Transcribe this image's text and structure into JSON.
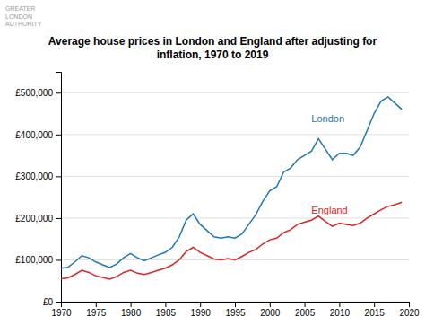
{
  "chart_data": {
    "type": "line",
    "title": "Average house prices in London and England after adjusting for\ninflation, 1970 to 2019",
    "x": [
      1970,
      1971,
      1972,
      1973,
      1974,
      1975,
      1976,
      1977,
      1978,
      1979,
      1980,
      1981,
      1982,
      1983,
      1984,
      1985,
      1986,
      1987,
      1988,
      1989,
      1990,
      1991,
      1992,
      1993,
      1994,
      1995,
      1996,
      1997,
      1998,
      1999,
      2000,
      2001,
      2002,
      2003,
      2004,
      2005,
      2006,
      2007,
      2008,
      2009,
      2010,
      2011,
      2012,
      2013,
      2014,
      2015,
      2016,
      2017,
      2018,
      2019
    ],
    "series": [
      {
        "color": "#1f77b4",
        "values": [
          80000,
          82000,
          95000,
          110000,
          105000,
          95000,
          88000,
          82000,
          90000,
          105000,
          115000,
          105000,
          98000,
          105000,
          112000,
          118000,
          130000,
          155000,
          195000,
          210000,
          185000,
          170000,
          155000,
          152000,
          155000,
          152000,
          162000,
          185000,
          208000,
          240000,
          265000,
          275000,
          310000,
          320000,
          340000,
          350000,
          360000,
          390000,
          365000,
          340000,
          355000,
          355000,
          350000,
          370000,
          410000,
          450000,
          480000,
          490000,
          475000,
          460000
        ]
      },
      {
        "color": "#d62728",
        "values": [
          55000,
          57000,
          65000,
          75000,
          70000,
          62000,
          58000,
          54000,
          60000,
          70000,
          75000,
          68000,
          65000,
          70000,
          75000,
          80000,
          88000,
          100000,
          120000,
          130000,
          118000,
          110000,
          102000,
          100000,
          103000,
          100000,
          108000,
          118000,
          125000,
          138000,
          148000,
          152000,
          165000,
          172000,
          185000,
          190000,
          195000,
          205000,
          192000,
          180000,
          188000,
          185000,
          182000,
          188000,
          200000,
          210000,
          220000,
          228000,
          232000,
          238000
        ]
      }
    ],
    "annotations": [
      {
        "text": "London",
        "x": 2006,
        "y": 430000,
        "color": "#1f77b4"
      },
      {
        "text": "England",
        "x": 2006,
        "y": 210000,
        "color": "#d62728"
      },
      {
        "text": "GREATER\nLONDON\nAUTHORITY"
      }
    ],
    "xlim": [
      1970,
      2020
    ],
    "ylim": [
      0,
      550000
    ],
    "xticks": [
      1970,
      1975,
      1980,
      1985,
      1990,
      1995,
      2000,
      2005,
      2010,
      2015,
      2020
    ],
    "yticks": [
      {
        "value": 0,
        "label": "£0"
      },
      {
        "value": 100000,
        "label": "£100,000"
      },
      {
        "value": 200000,
        "label": "£200,000"
      },
      {
        "value": 300000,
        "label": "£300,000"
      },
      {
        "value": 400000,
        "label": "£400,000"
      },
      {
        "value": 500000,
        "label": "£500,000"
      }
    ],
    "grid": true
  }
}
